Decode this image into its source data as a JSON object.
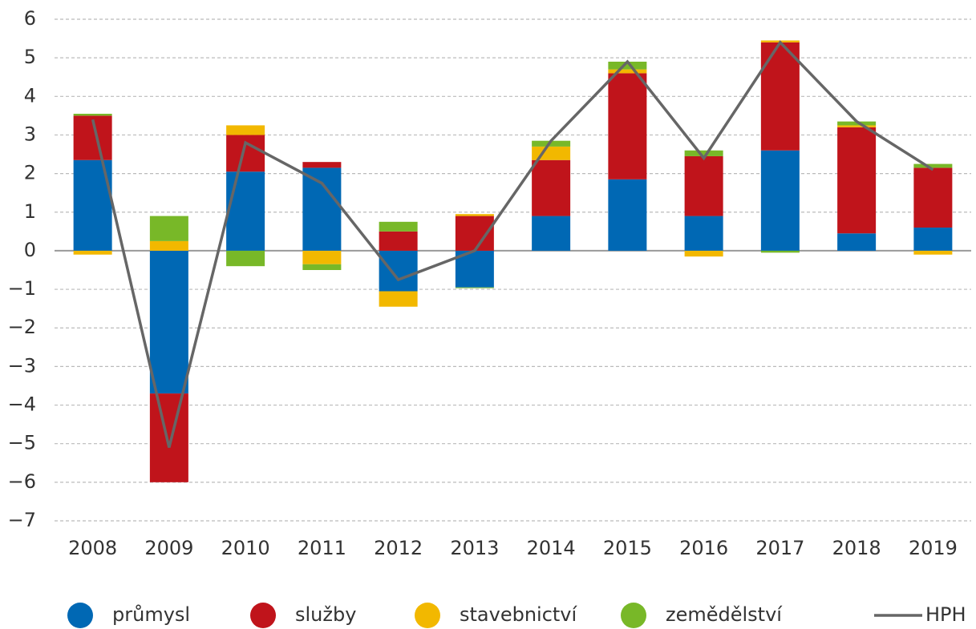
{
  "chart_data": {
    "type": "bar",
    "stacked": true,
    "categories": [
      "2008",
      "2009",
      "2010",
      "2011",
      "2012",
      "2013",
      "2014",
      "2015",
      "2016",
      "2017",
      "2018",
      "2019"
    ],
    "series": [
      {
        "name": "průmysl",
        "color": "#0068b4",
        "values": [
          2.35,
          -3.7,
          2.05,
          2.15,
          -1.05,
          -0.95,
          0.9,
          1.85,
          0.9,
          2.6,
          0.45,
          0.6
        ]
      },
      {
        "name": "služby",
        "color": "#c0141b",
        "values": [
          1.15,
          -2.3,
          0.95,
          0.15,
          0.5,
          0.9,
          1.45,
          2.75,
          1.55,
          2.8,
          2.75,
          1.55
        ]
      },
      {
        "name": "stavebnictví",
        "color": "#f2b800",
        "values": [
          -0.1,
          0.25,
          0.25,
          -0.35,
          -0.4,
          0.05,
          0.35,
          0.1,
          -0.15,
          0.05,
          0.05,
          -0.1
        ]
      },
      {
        "name": "zemědělství",
        "color": "#78b828",
        "values": [
          0.05,
          0.65,
          -0.4,
          -0.15,
          0.25,
          -0.02,
          0.15,
          0.2,
          0.15,
          -0.05,
          0.1,
          0.1
        ]
      },
      {
        "name": "HPH",
        "type": "line",
        "color": "#666666",
        "values": [
          3.4,
          -5.1,
          2.8,
          1.75,
          -0.75,
          0.0,
          2.85,
          4.9,
          2.4,
          5.4,
          3.35,
          2.1
        ]
      }
    ],
    "ylim": [
      -7,
      6
    ],
    "yticks": [
      {
        "value": -7,
        "label": "−7"
      },
      {
        "value": -6,
        "label": "−6"
      },
      {
        "value": -5,
        "label": "−5"
      },
      {
        "value": -4,
        "label": "−4"
      },
      {
        "value": -3,
        "label": "−3"
      },
      {
        "value": -2,
        "label": "−2"
      },
      {
        "value": -1,
        "label": "−1"
      },
      0,
      1,
      2,
      3,
      4,
      5,
      6
    ],
    "grid": true,
    "legend": "bottom"
  }
}
